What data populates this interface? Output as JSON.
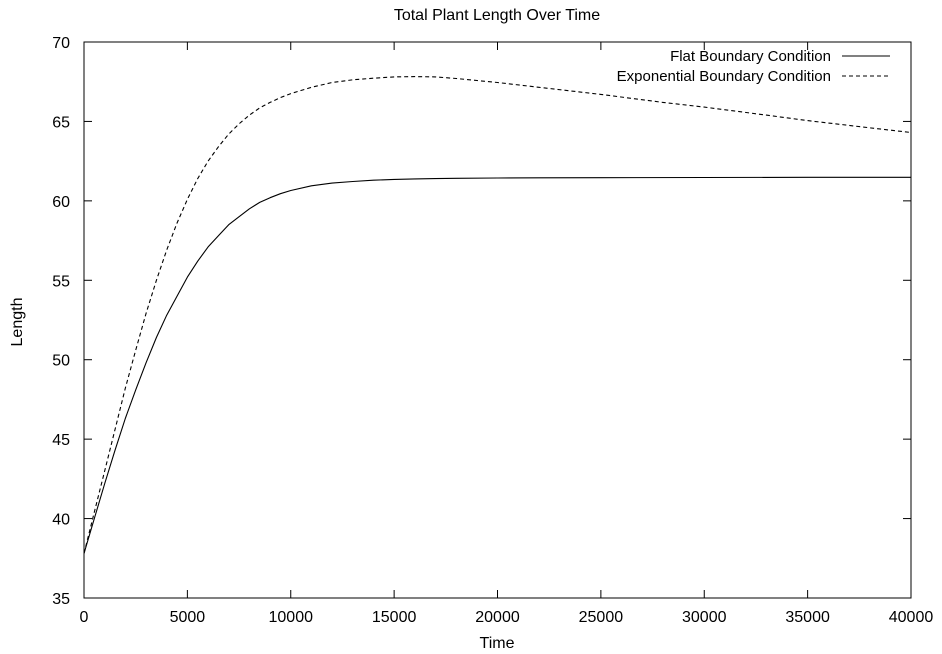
{
  "chart_data": {
    "type": "line",
    "title": "Total Plant Length Over Time",
    "xlabel": "Time",
    "ylabel": "Length",
    "xlim": [
      0,
      40000
    ],
    "ylim": [
      35,
      70
    ],
    "xticks": [
      0,
      5000,
      10000,
      15000,
      20000,
      25000,
      30000,
      35000,
      40000
    ],
    "yticks": [
      35,
      40,
      45,
      50,
      55,
      60,
      65,
      70
    ],
    "grid": false,
    "legend_position": "top-right",
    "series": [
      {
        "name": "Flat Boundary Condition",
        "style": "solid",
        "color": "#000000",
        "x": [
          0,
          500,
          1000,
          1500,
          2000,
          2500,
          3000,
          3500,
          4000,
          4500,
          5000,
          5500,
          6000,
          6500,
          7000,
          7500,
          8000,
          8500,
          9000,
          9500,
          10000,
          11000,
          12000,
          13000,
          14000,
          15000,
          16000,
          17000,
          18000,
          20000,
          22000,
          25000,
          30000,
          35000,
          40000
        ],
        "y": [
          37.8,
          40.0,
          42.2,
          44.3,
          46.3,
          48.1,
          49.8,
          51.4,
          52.8,
          54.0,
          55.2,
          56.2,
          57.1,
          57.8,
          58.5,
          59.0,
          59.5,
          59.9,
          60.2,
          60.45,
          60.65,
          60.95,
          61.12,
          61.22,
          61.3,
          61.35,
          61.38,
          61.4,
          61.42,
          61.44,
          61.45,
          61.46,
          61.47,
          61.48,
          61.48
        ]
      },
      {
        "name": "Exponential Boundary Condition",
        "style": "dashed",
        "color": "#000000",
        "x": [
          0,
          500,
          1000,
          1500,
          2000,
          2500,
          3000,
          3500,
          4000,
          4500,
          5000,
          5500,
          6000,
          6500,
          7000,
          7500,
          8000,
          8500,
          9000,
          9500,
          10000,
          11000,
          12000,
          13000,
          14000,
          15000,
          16000,
          17000,
          18000,
          20000,
          22000,
          25000,
          28000,
          30000,
          33000,
          35000,
          38000,
          40000
        ],
        "y": [
          37.8,
          40.4,
          43.0,
          45.6,
          48.2,
          50.6,
          52.9,
          55.0,
          56.9,
          58.6,
          60.1,
          61.4,
          62.5,
          63.4,
          64.2,
          64.85,
          65.4,
          65.85,
          66.2,
          66.5,
          66.75,
          67.15,
          67.45,
          67.62,
          67.72,
          67.8,
          67.82,
          67.8,
          67.7,
          67.45,
          67.15,
          66.7,
          66.2,
          65.9,
          65.4,
          65.05,
          64.6,
          64.3
        ]
      }
    ]
  }
}
